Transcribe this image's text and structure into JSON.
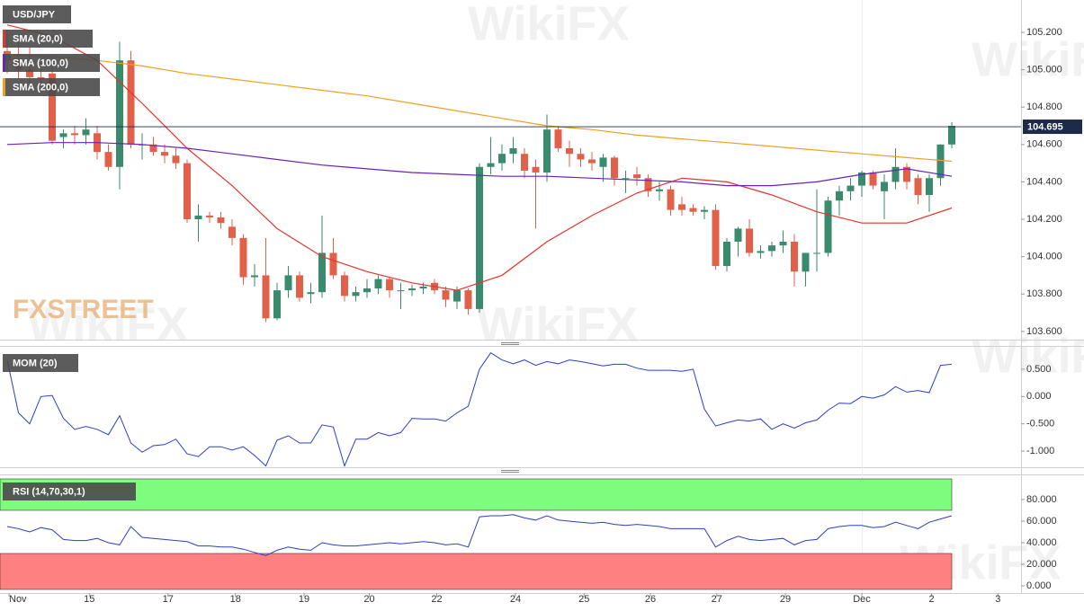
{
  "watermark": "WikiFX",
  "logo": "FXSTREET",
  "chart_data": [
    {
      "type": "candlestick",
      "title": "USD/JPY",
      "up_color": "#3a8a6e",
      "down_color": "#e0604a",
      "open": [
        105.1,
        105.05,
        105.0,
        104.96,
        104.98,
        104.64,
        104.66,
        104.65,
        104.66,
        104.56,
        104.48,
        105.05,
        104.6,
        104.6,
        104.56,
        104.54,
        104.5,
        104.2,
        104.22,
        104.21,
        104.16,
        104.1,
        103.89,
        103.9,
        103.67,
        103.82,
        103.9,
        103.8,
        103.81,
        104.02,
        103.9,
        103.79,
        103.81,
        103.83,
        103.88,
        103.82,
        103.82,
        103.83,
        103.86,
        103.82,
        103.76,
        103.82,
        103.72,
        104.48,
        104.5,
        104.55,
        104.55,
        104.48,
        104.45,
        104.68,
        104.58,
        104.55,
        104.52,
        104.48,
        104.53,
        104.42,
        104.44,
        104.42,
        104.35,
        104.36,
        104.28,
        104.26,
        104.24,
        104.25,
        103.95,
        104.08,
        104.15,
        104.02,
        104.03,
        104.06,
        104.08,
        103.92,
        104.02,
        104.02,
        104.3,
        104.35,
        104.38,
        104.45,
        104.35,
        104.4,
        104.48,
        104.42,
        104.33,
        104.42,
        104.6
      ],
      "high": [
        105.2,
        105.15,
        105.12,
        105.05,
        105.02,
        104.68,
        104.7,
        104.74,
        104.7,
        104.6,
        105.15,
        105.1,
        104.66,
        104.64,
        104.6,
        104.58,
        104.52,
        104.28,
        104.24,
        104.24,
        104.2,
        104.12,
        103.96,
        104.1,
        103.86,
        103.95,
        103.92,
        103.86,
        104.22,
        104.1,
        103.92,
        103.84,
        103.88,
        103.9,
        103.89,
        103.86,
        103.85,
        103.86,
        103.88,
        103.84,
        103.84,
        103.83,
        104.5,
        104.64,
        104.6,
        104.64,
        104.58,
        104.52,
        104.76,
        104.7,
        104.62,
        104.58,
        104.56,
        104.55,
        104.54,
        104.46,
        104.48,
        104.44,
        104.4,
        104.38,
        104.32,
        104.28,
        104.27,
        104.28,
        104.1,
        104.16,
        104.2,
        104.06,
        104.08,
        104.14,
        104.12,
        104.02,
        104.36,
        104.32,
        104.38,
        104.42,
        104.46,
        104.46,
        104.44,
        104.58,
        104.5,
        104.44,
        104.44,
        104.6,
        104.72
      ],
      "low": [
        104.98,
        104.95,
        104.92,
        104.88,
        104.6,
        104.58,
        104.6,
        104.6,
        104.52,
        104.46,
        104.36,
        104.58,
        104.52,
        104.54,
        104.5,
        104.47,
        104.18,
        104.08,
        104.18,
        104.15,
        104.06,
        103.85,
        103.84,
        103.65,
        103.66,
        103.78,
        103.76,
        103.75,
        103.78,
        103.88,
        103.76,
        103.76,
        103.78,
        103.8,
        103.78,
        103.72,
        103.79,
        103.8,
        103.8,
        103.73,
        103.72,
        103.69,
        103.7,
        104.44,
        104.46,
        104.5,
        104.42,
        104.15,
        104.4,
        104.56,
        104.48,
        104.48,
        104.46,
        104.4,
        104.38,
        104.34,
        104.38,
        104.32,
        104.3,
        104.22,
        104.22,
        104.22,
        104.2,
        103.93,
        103.92,
        104.0,
        104.0,
        103.99,
        104.0,
        104.02,
        103.84,
        103.84,
        103.92,
        104.0,
        104.22,
        104.3,
        104.32,
        104.36,
        104.2,
        104.36,
        104.36,
        104.28,
        104.24,
        104.38,
        104.58
      ],
      "close": [
        105.05,
        105.0,
        104.96,
        104.95,
        104.62,
        104.66,
        104.65,
        104.68,
        104.56,
        104.48,
        105.05,
        104.6,
        104.6,
        104.56,
        104.54,
        104.5,
        104.2,
        104.22,
        104.21,
        104.18,
        104.1,
        103.89,
        103.9,
        103.67,
        103.82,
        103.9,
        103.78,
        103.81,
        104.02,
        103.9,
        103.79,
        103.81,
        103.83,
        103.88,
        103.82,
        103.82,
        103.83,
        103.84,
        103.82,
        103.77,
        103.82,
        103.72,
        104.48,
        104.5,
        104.55,
        104.58,
        104.46,
        104.45,
        104.68,
        104.58,
        104.55,
        104.52,
        104.5,
        104.53,
        104.42,
        104.42,
        104.42,
        104.35,
        104.36,
        104.25,
        104.25,
        104.24,
        104.25,
        103.95,
        104.08,
        104.15,
        104.02,
        104.03,
        104.06,
        104.08,
        103.92,
        104.02,
        104.02,
        104.3,
        104.35,
        104.38,
        104.45,
        104.38,
        104.4,
        104.48,
        104.4,
        104.33,
        104.42,
        104.6,
        104.7
      ],
      "series": [
        {
          "name": "SMA (20,0)",
          "color": "#e8322a",
          "x": [
            0,
            4,
            8,
            12,
            16,
            20,
            24,
            28,
            32,
            36,
            40,
            44,
            48,
            52,
            56,
            60,
            64,
            68,
            72,
            76,
            80,
            84
          ],
          "values": [
            105.24,
            105.18,
            105.05,
            104.82,
            104.58,
            104.38,
            104.15,
            104.0,
            103.92,
            103.86,
            103.82,
            103.9,
            104.08,
            104.22,
            104.34,
            104.42,
            104.4,
            104.33,
            104.24,
            104.18,
            104.18,
            104.26
          ]
        },
        {
          "name": "SMA (100,0)",
          "color": "#6a22b8",
          "x": [
            0,
            4,
            8,
            12,
            16,
            20,
            24,
            28,
            32,
            36,
            40,
            44,
            48,
            52,
            56,
            60,
            64,
            68,
            72,
            76,
            80,
            84
          ],
          "values": [
            104.6,
            104.61,
            104.61,
            104.6,
            104.58,
            104.55,
            104.52,
            104.49,
            104.47,
            104.45,
            104.44,
            104.43,
            104.43,
            104.42,
            104.41,
            104.4,
            104.38,
            104.38,
            104.4,
            104.44,
            104.47,
            104.43
          ]
        },
        {
          "name": "SMA (200,0)",
          "color": "#f0a020",
          "x": [
            0,
            4,
            8,
            12,
            16,
            20,
            24,
            28,
            32,
            36,
            40,
            44,
            48,
            52,
            56,
            60,
            64,
            68,
            72,
            76,
            80,
            84
          ],
          "values": [
            105.08,
            105.07,
            105.05,
            105.02,
            104.98,
            104.95,
            104.92,
            104.89,
            104.86,
            104.82,
            104.78,
            104.74,
            104.7,
            104.68,
            104.65,
            104.63,
            104.61,
            104.59,
            104.57,
            104.55,
            104.53,
            104.51
          ]
        }
      ],
      "current_price": 104.695,
      "xlim": [
        -0.64,
        90.16
      ],
      "ylim": [
        103.556,
        105.373
      ],
      "yticks": [
        {
          "value": 103.6,
          "label": "103.600"
        },
        {
          "value": 103.8,
          "label": "103.800"
        },
        {
          "value": 104.0,
          "label": "104.000"
        },
        {
          "value": 104.2,
          "label": "104.200"
        },
        {
          "value": 104.4,
          "label": "104.400"
        },
        {
          "value": 104.6,
          "label": "104.600"
        },
        {
          "value": 104.8,
          "label": "104.800"
        },
        {
          "value": 105.0,
          "label": "105.000"
        },
        {
          "value": 105.2,
          "label": "105.200"
        }
      ]
    },
    {
      "type": "line",
      "series": [
        {
          "name": "MOM (20)",
          "color": "#2a3fc8",
          "values": [
            0.67,
            -0.3,
            -0.5,
            0.0,
            0.02,
            -0.4,
            -0.6,
            -0.55,
            -0.6,
            -0.7,
            -0.35,
            -0.85,
            -1.02,
            -0.9,
            -0.88,
            -0.78,
            -1.05,
            -1.1,
            -0.92,
            -0.92,
            -0.98,
            -0.92,
            -1.08,
            -1.27,
            -0.8,
            -0.72,
            -0.85,
            -0.85,
            -0.52,
            -0.56,
            -1.27,
            -0.78,
            -0.78,
            -0.66,
            -0.72,
            -0.66,
            -0.4,
            -0.41,
            -0.41,
            -0.45,
            -0.3,
            -0.18,
            0.5,
            0.8,
            0.67,
            0.6,
            0.67,
            0.57,
            0.64,
            0.6,
            0.67,
            0.64,
            0.6,
            0.56,
            0.59,
            0.59,
            0.52,
            0.48,
            0.48,
            0.48,
            0.46,
            0.5,
            -0.23,
            -0.54,
            -0.48,
            -0.43,
            -0.45,
            -0.41,
            -0.6,
            -0.5,
            -0.58,
            -0.48,
            -0.43,
            -0.25,
            -0.12,
            -0.13,
            0.0,
            -0.03,
            0.03,
            0.18,
            0.08,
            0.11,
            0.07,
            0.57,
            0.59
          ]
        }
      ],
      "ylim": [
        -1.295,
        0.926
      ],
      "yticks": [
        {
          "value": -1.0,
          "label": "-1.000"
        },
        {
          "value": -0.5,
          "label": "-0.500"
        },
        {
          "value": 0,
          "label": "0.000"
        },
        {
          "value": 0.5,
          "label": "0.500"
        }
      ]
    },
    {
      "type": "line",
      "series": [
        {
          "name": "RSI (14,70,30,1)",
          "color": "#2a3fc8",
          "values": [
            55,
            53,
            50,
            54,
            52,
            43,
            42,
            42,
            44,
            40,
            38,
            55,
            45,
            44,
            43,
            42,
            41,
            37,
            37,
            36,
            36,
            34,
            31,
            28,
            33,
            36,
            34,
            33,
            40,
            38,
            37,
            37,
            38,
            39,
            40,
            39,
            40,
            41,
            40,
            38,
            39,
            36,
            64,
            65,
            65,
            66,
            63,
            61,
            65,
            61,
            60,
            59,
            58,
            59,
            57,
            56,
            57,
            56,
            55,
            53,
            53,
            53,
            53,
            36,
            42,
            46,
            43,
            42,
            43,
            44,
            38,
            42,
            43,
            53,
            55,
            56,
            56,
            54,
            55,
            59,
            56,
            53,
            59,
            62,
            65
          ]
        }
      ],
      "overbought": 70,
      "oversold": 30,
      "overbought_color": "#7dfc7d",
      "oversold_color": "#ff8080",
      "ylim": [
        -6.67,
        103.3
      ],
      "yticks": [
        {
          "value": 0,
          "label": "0.000"
        },
        {
          "value": 20,
          "label": "20.000"
        },
        {
          "value": 40,
          "label": "40.000"
        },
        {
          "value": 60,
          "label": "60.000"
        },
        {
          "value": 80,
          "label": "80.000"
        }
      ],
      "xticks": [
        {
          "value": 0.16,
          "label": "Nov"
        },
        {
          "value": 7.3,
          "label": "15"
        },
        {
          "value": 14.3,
          "label": "17"
        },
        {
          "value": 20.3,
          "label": "18"
        },
        {
          "value": 26.4,
          "label": "19"
        },
        {
          "value": 32.2,
          "label": "20"
        },
        {
          "value": 38.2,
          "label": "22"
        },
        {
          "value": 45.2,
          "label": "24"
        },
        {
          "value": 51.3,
          "label": "25"
        },
        {
          "value": 57.2,
          "label": "26"
        },
        {
          "value": 63.1,
          "label": "27"
        },
        {
          "value": 69.2,
          "label": "29"
        },
        {
          "value": 76.0,
          "label": "Dec"
        },
        {
          "value": 82.2,
          "label": "2"
        },
        {
          "value": 88.1,
          "label": "3"
        }
      ]
    }
  ]
}
